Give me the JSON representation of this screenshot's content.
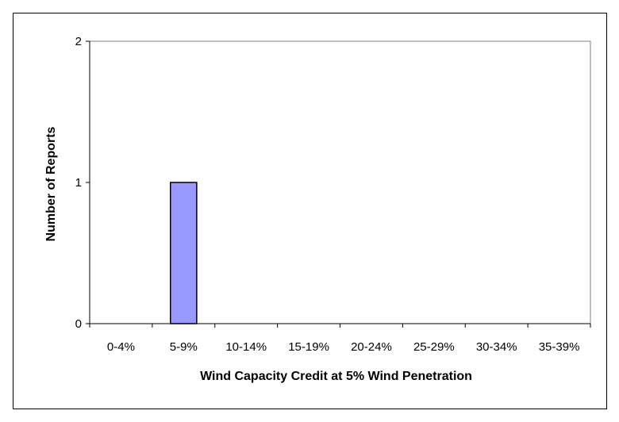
{
  "chart_data": {
    "type": "bar",
    "title": "",
    "xlabel": "Wind Capacity Credit at 5% Wind Penetration",
    "ylabel": "Number of Reports",
    "categories": [
      "0-4%",
      "5-9%",
      "10-14%",
      "15-19%",
      "20-24%",
      "25-29%",
      "30-34%",
      "35-39%"
    ],
    "series": [
      {
        "values": [
          0,
          1,
          0,
          0,
          0,
          0,
          0,
          0
        ]
      }
    ],
    "ylim": [
      0,
      2
    ],
    "yticks": [
      "0",
      "1",
      "2"
    ],
    "grid": false,
    "legend": "none",
    "bar_color": "#9999FF",
    "bar_edge_color": "#000000",
    "plot_border_color": "#808080"
  }
}
